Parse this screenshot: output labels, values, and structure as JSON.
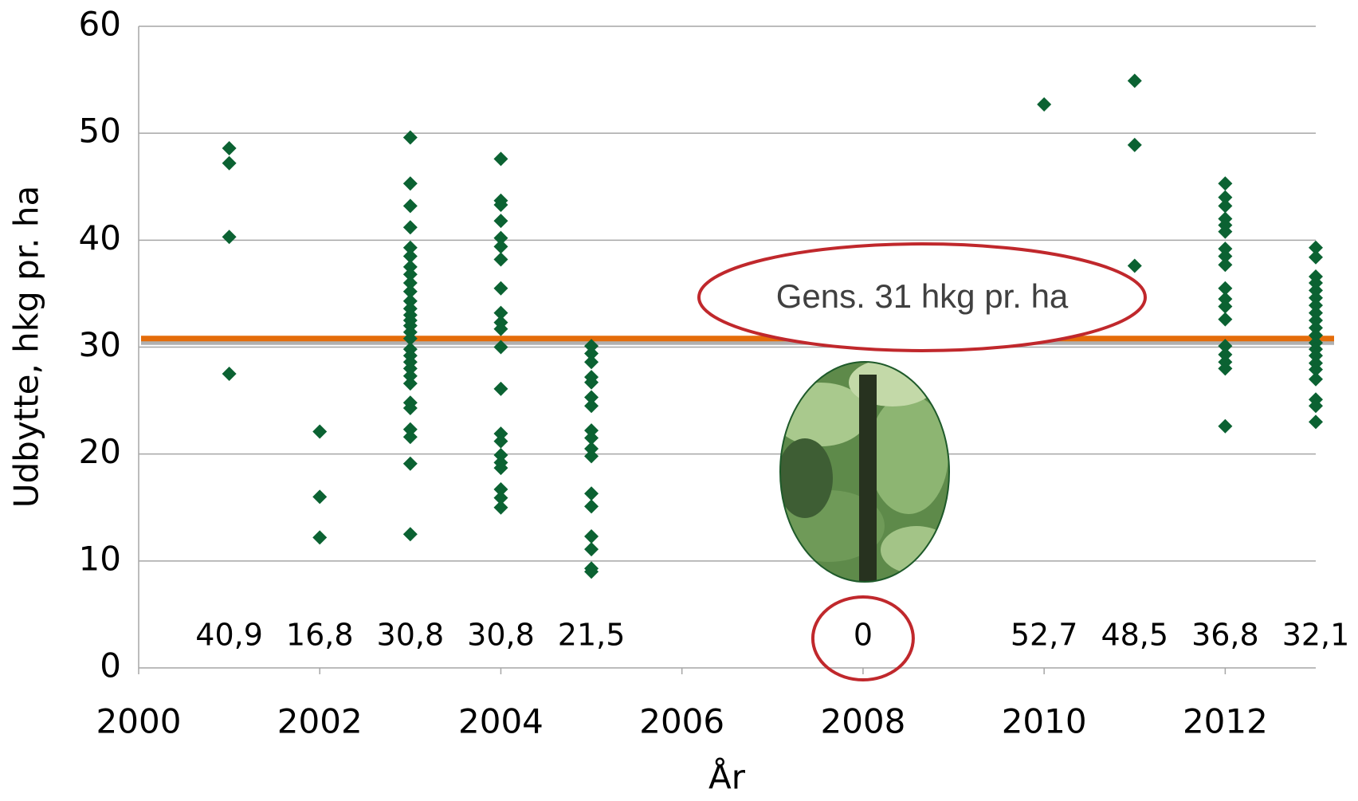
{
  "chart_data": {
    "type": "scatter",
    "x_label": "År",
    "y_label": "Udbytte, hkg pr. ha",
    "color": "#0b6232",
    "x": [
      2001,
      2001,
      2001,
      2001,
      2002,
      2002,
      2002,
      2003,
      2003,
      2003,
      2003,
      2003,
      2003,
      2003,
      2003,
      2003,
      2003,
      2003,
      2003,
      2003,
      2003,
      2003,
      2003,
      2003,
      2003,
      2003,
      2003,
      2003,
      2003,
      2003,
      2003,
      2003,
      2003,
      2003,
      2003,
      2003,
      2004,
      2004,
      2004,
      2004,
      2004,
      2004,
      2004,
      2004,
      2004,
      2004,
      2004,
      2004,
      2004,
      2004,
      2004,
      2004,
      2004,
      2004,
      2004,
      2004,
      2004,
      2005,
      2005,
      2005,
      2005,
      2005,
      2005,
      2005,
      2005,
      2005,
      2005,
      2005,
      2005,
      2005,
      2005,
      2005,
      2005,
      2005,
      2010,
      2011,
      2011,
      2011,
      2012,
      2012,
      2012,
      2012,
      2012,
      2012,
      2012,
      2012,
      2012,
      2012,
      2012,
      2012,
      2012,
      2012,
      2012,
      2012,
      2012,
      2012,
      2013,
      2013,
      2013,
      2013,
      2013,
      2013,
      2013,
      2013,
      2013,
      2013,
      2013,
      2013,
      2013,
      2013,
      2013,
      2013,
      2013,
      2013,
      2013,
      2013
    ],
    "values": [
      48.6,
      47.2,
      40.3,
      27.5,
      22.1,
      16.0,
      12.2,
      49.6,
      45.3,
      43.2,
      41.2,
      39.3,
      38.5,
      37.5,
      36.8,
      36.0,
      35.2,
      34.3,
      33.6,
      33.0,
      32.5,
      32.0,
      31.4,
      30.8,
      29.8,
      29.2,
      28.6,
      28.0,
      27.3,
      26.6,
      24.8,
      24.3,
      22.3,
      21.6,
      19.1,
      12.5,
      47.6,
      43.7,
      43.3,
      41.8,
      40.2,
      39.4,
      38.2,
      35.5,
      33.2,
      32.3,
      31.7,
      30.0,
      26.1,
      21.9,
      21.2,
      19.9,
      19.2,
      18.7,
      16.7,
      15.9,
      15.0,
      30.1,
      29.4,
      28.6,
      27.2,
      26.7,
      25.3,
      24.5,
      22.2,
      21.5,
      20.5,
      19.8,
      16.3,
      15.1,
      12.3,
      11.1,
      9.3,
      9.0,
      52.7,
      54.9,
      48.9,
      37.6,
      45.3,
      44.0,
      43.2,
      42.0,
      41.4,
      40.8,
      39.2,
      38.5,
      37.7,
      35.5,
      34.5,
      33.8,
      32.6,
      30.1,
      29.3,
      28.6,
      28.0,
      22.6,
      39.3,
      38.4,
      36.6,
      36.0,
      35.3,
      34.6,
      33.9,
      33.2,
      32.5,
      31.8,
      31.1,
      30.4,
      29.8,
      29.2,
      28.5,
      27.9,
      27.0,
      25.1,
      24.5,
      23.0
    ],
    "xlim": [
      2000,
      2013
    ],
    "xticks": [
      2000,
      2002,
      2004,
      2006,
      2008,
      2010,
      2012
    ],
    "ylim": [
      0,
      60
    ],
    "yticks": [
      0,
      10,
      20,
      30,
      40,
      50,
      60
    ],
    "grid": true,
    "reference_line": {
      "value": 30.8,
      "label": "Gens. 31 hkg pr. ha",
      "color": "#e46c0a"
    },
    "annotations": [
      {
        "x": 2001,
        "label": "40,9"
      },
      {
        "x": 2002,
        "label": "16,8"
      },
      {
        "x": 2003,
        "label": "30,8"
      },
      {
        "x": 2004,
        "label": "30,8"
      },
      {
        "x": 2005,
        "label": "21,5"
      },
      {
        "x": 2008,
        "label": "0",
        "highlight": true
      },
      {
        "x": 2010,
        "label": "52,7"
      },
      {
        "x": 2011,
        "label": "48,5"
      },
      {
        "x": 2012,
        "label": "36,8"
      },
      {
        "x": 2013,
        "label": "32,1"
      }
    ]
  }
}
